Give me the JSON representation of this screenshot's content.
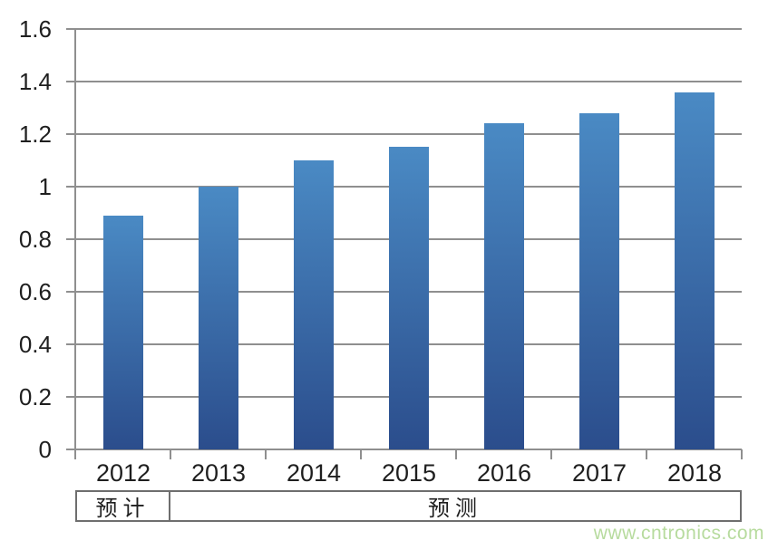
{
  "chart_data": {
    "type": "bar",
    "categories": [
      "2012",
      "2013",
      "2014",
      "2015",
      "2016",
      "2017",
      "2018"
    ],
    "values": [
      0.89,
      1.0,
      1.1,
      1.15,
      1.24,
      1.28,
      1.36
    ],
    "title": "",
    "xlabel": "",
    "ylabel": "",
    "ylim": [
      0,
      1.6
    ],
    "ytick_step": 0.2,
    "ytick_labels": [
      "0",
      "0.2",
      "0.4",
      "0.6",
      "0.8",
      "1",
      "1.2",
      "1.4",
      "1.6"
    ],
    "grid": true,
    "grid_color": "#8f8f8f",
    "bar_gradient_top": "#4a8ac4",
    "bar_gradient_bottom": "#2b4d8c",
    "legend": null
  },
  "annotations": {
    "period_row": [
      {
        "label": "预计",
        "span_categories": 1
      },
      {
        "label": "预测",
        "span_categories": 6
      }
    ]
  },
  "watermark": {
    "text": "www.cntronics.com",
    "color": "#b7db9e"
  }
}
